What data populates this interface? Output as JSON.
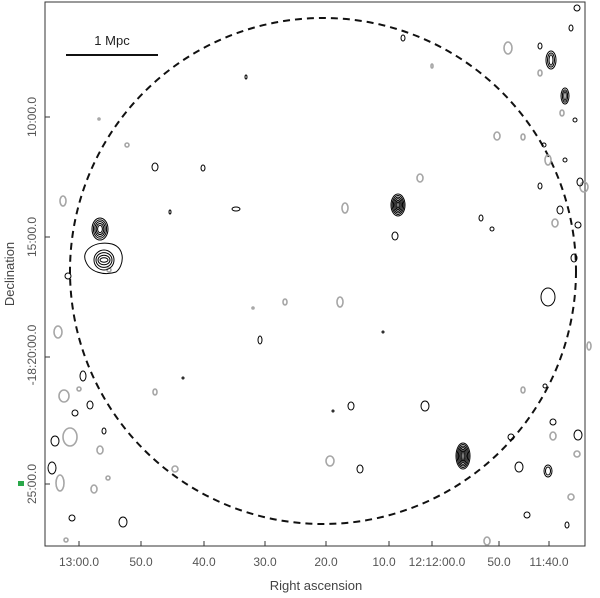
{
  "chart_data": {
    "type": "contour",
    "xlabel": "Right ascension",
    "ylabel": "Declination",
    "x_ticks": [
      "13:00.0",
      "50.0",
      "40.0",
      "30.0",
      "20.0",
      "10.0",
      "12:12:00.0",
      "50.0",
      "11:40.0"
    ],
    "y_ticks": [
      "10:00.0",
      "15:00.0",
      "-18:20:00.0",
      "25:00.0"
    ],
    "scale_bar_label": "1 Mpc",
    "grid": false,
    "x_direction": "decreasing to the right",
    "colors": {
      "positive_contours": "#000000",
      "negative_contours": "#a6a6a6",
      "circle": "#000000",
      "marker": "#2aa84a"
    },
    "annotations": [
      "dashed circle centred in field",
      "scale bar top-left"
    ]
  }
}
